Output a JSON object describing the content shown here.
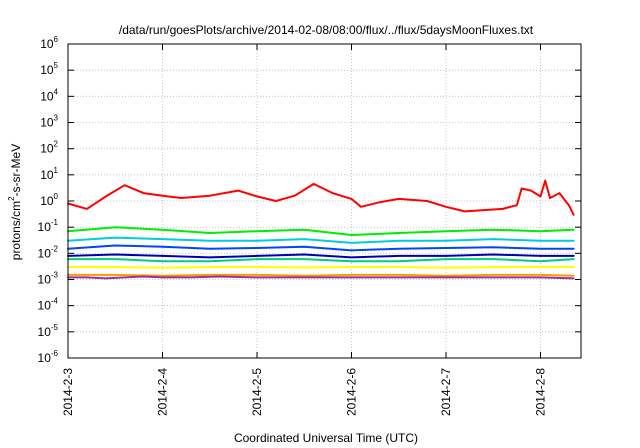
{
  "chart_data": {
    "type": "line",
    "title": "/data/run/goesPlots/archive/2014-02-08/08:00/flux/../flux/5daysMoonFluxes.txt",
    "xlabel": "Coordinated Universal Time (UTC)",
    "ylabel": {
      "prefix": "protons/cm",
      "sup": "2",
      "suffix": "-s-sr-MeV"
    },
    "yscale": "log",
    "ylim_exp": [
      -6,
      6
    ],
    "y_tick_exponents": [
      -6,
      -5,
      -4,
      -3,
      -2,
      -1,
      0,
      1,
      2,
      3,
      4,
      5,
      6
    ],
    "y_tick_base": "10",
    "x_range_days": [
      0,
      5.35
    ],
    "x_ticks": [
      {
        "label": "2014-2-3",
        "day": 0
      },
      {
        "label": "2014-2-4",
        "day": 1
      },
      {
        "label": "2014-2-5",
        "day": 2
      },
      {
        "label": "2014-2-6",
        "day": 3
      },
      {
        "label": "2014-2-7",
        "day": 4
      },
      {
        "label": "2014-2-8",
        "day": 5
      }
    ],
    "grid": true,
    "series": [
      {
        "color": "#ff0000",
        "x": [
          0,
          0.2,
          0.4,
          0.6,
          0.8,
          1.0,
          1.2,
          1.5,
          1.8,
          2.0,
          2.2,
          2.4,
          2.6,
          2.8,
          3.0,
          3.1,
          3.3,
          3.5,
          3.8,
          4.0,
          4.2,
          4.4,
          4.6,
          4.75,
          4.8,
          4.9,
          5.0,
          5.05,
          5.1,
          5.2,
          5.3,
          5.35
        ],
        "y": [
          0.8,
          0.5,
          1.5,
          4,
          2,
          1.6,
          1.3,
          1.6,
          2.5,
          1.5,
          1.0,
          1.6,
          4.5,
          2.0,
          1.2,
          0.6,
          0.9,
          1.2,
          1.0,
          0.6,
          0.4,
          0.45,
          0.5,
          0.7,
          3,
          2.5,
          1.5,
          6,
          1.3,
          2,
          0.7,
          0.3
        ]
      },
      {
        "color": "#00ee00",
        "x": [
          0,
          0.5,
          1,
          1.5,
          2,
          2.5,
          3,
          3.5,
          4,
          4.5,
          5,
          5.35
        ],
        "y": [
          0.07,
          0.1,
          0.08,
          0.06,
          0.07,
          0.08,
          0.05,
          0.06,
          0.07,
          0.08,
          0.07,
          0.08
        ]
      },
      {
        "color": "#00ccdd",
        "x": [
          0,
          0.5,
          1,
          1.5,
          2,
          2.5,
          3,
          3.5,
          4,
          4.5,
          5,
          5.35
        ],
        "y": [
          0.03,
          0.04,
          0.035,
          0.03,
          0.03,
          0.035,
          0.025,
          0.03,
          0.03,
          0.035,
          0.03,
          0.03
        ]
      },
      {
        "color": "#0044ff",
        "x": [
          0,
          0.5,
          1,
          1.5,
          2,
          2.5,
          3,
          3.5,
          4,
          4.5,
          5,
          5.35
        ],
        "y": [
          0.015,
          0.02,
          0.018,
          0.015,
          0.016,
          0.018,
          0.013,
          0.015,
          0.016,
          0.017,
          0.015,
          0.015
        ]
      },
      {
        "color": "#0000aa",
        "x": [
          0,
          0.5,
          1,
          1.5,
          2,
          2.5,
          3,
          3.5,
          4,
          4.5,
          5,
          5.35
        ],
        "y": [
          0.008,
          0.009,
          0.008,
          0.007,
          0.008,
          0.009,
          0.007,
          0.008,
          0.008,
          0.009,
          0.008,
          0.008
        ]
      },
      {
        "color": "#00cc88",
        "x": [
          0,
          0.5,
          1,
          1.5,
          2,
          2.5,
          3,
          3.5,
          4,
          4.5,
          5,
          5.35
        ],
        "y": [
          0.006,
          0.006,
          0.005,
          0.005,
          0.006,
          0.006,
          0.005,
          0.005,
          0.006,
          0.006,
          0.005,
          0.006
        ]
      },
      {
        "color": "#ffff00",
        "x": [
          0,
          0.5,
          1,
          1.5,
          2,
          2.5,
          3,
          3.5,
          4,
          4.5,
          5,
          5.35
        ],
        "y": [
          0.003,
          0.003,
          0.0028,
          0.003,
          0.003,
          0.0029,
          0.003,
          0.003,
          0.0028,
          0.003,
          0.003,
          0.003
        ]
      },
      {
        "color": "#ff9900",
        "x": [
          0,
          0.5,
          1,
          1.5,
          2,
          2.5,
          3,
          3.5,
          4,
          4.5,
          5,
          5.35
        ],
        "y": [
          0.0015,
          0.0015,
          0.0014,
          0.0015,
          0.0015,
          0.0014,
          0.0015,
          0.0015,
          0.0014,
          0.0015,
          0.0015,
          0.0014
        ]
      },
      {
        "color": "#993399",
        "x": [
          0,
          0.2,
          0.4,
          0.6,
          0.8,
          1,
          1.3,
          1.6,
          2,
          2.5,
          3,
          3.5,
          4,
          4.5,
          5,
          5.35
        ],
        "y": [
          0.0012,
          0.0012,
          0.0011,
          0.0012,
          0.0013,
          0.0012,
          0.0012,
          0.0013,
          0.0012,
          0.0012,
          0.0012,
          0.0012,
          0.0012,
          0.0012,
          0.0012,
          0.0011
        ]
      }
    ]
  }
}
